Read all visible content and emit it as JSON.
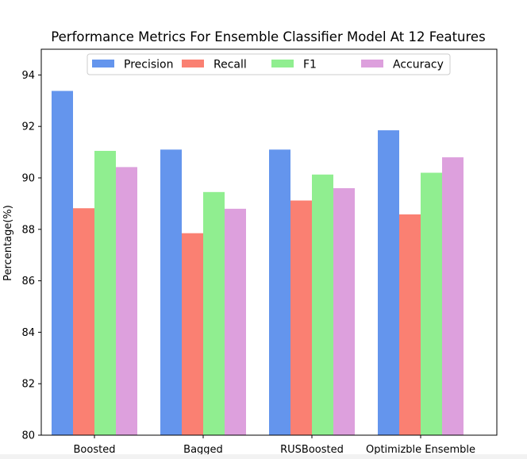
{
  "chart_data": {
    "type": "bar",
    "title": "Performance Metrics For Ensemble Classifier Model At 12 Features",
    "xlabel": "",
    "ylabel": "Percentage(%)",
    "ylim": [
      80,
      95
    ],
    "yticks": [
      80,
      82,
      84,
      86,
      88,
      90,
      92,
      94
    ],
    "categories": [
      "Boosted",
      "Bagged",
      "RUSBoosted",
      "Optimizble Ensemble"
    ],
    "series": [
      {
        "name": "Precision",
        "color": "#6495ED",
        "values": [
          93.38,
          91.1,
          91.1,
          91.85
        ]
      },
      {
        "name": "Recall",
        "color": "#FA8072",
        "values": [
          88.82,
          87.85,
          89.12,
          88.58
        ]
      },
      {
        "name": "F1",
        "color": "#90EE90",
        "values": [
          91.05,
          89.45,
          90.13,
          90.2
        ]
      },
      {
        "name": "Accuracy",
        "color": "#DDA0DD",
        "values": [
          90.42,
          88.8,
          89.6,
          90.8
        ]
      }
    ],
    "legend_position": "top-center",
    "grid": false
  }
}
